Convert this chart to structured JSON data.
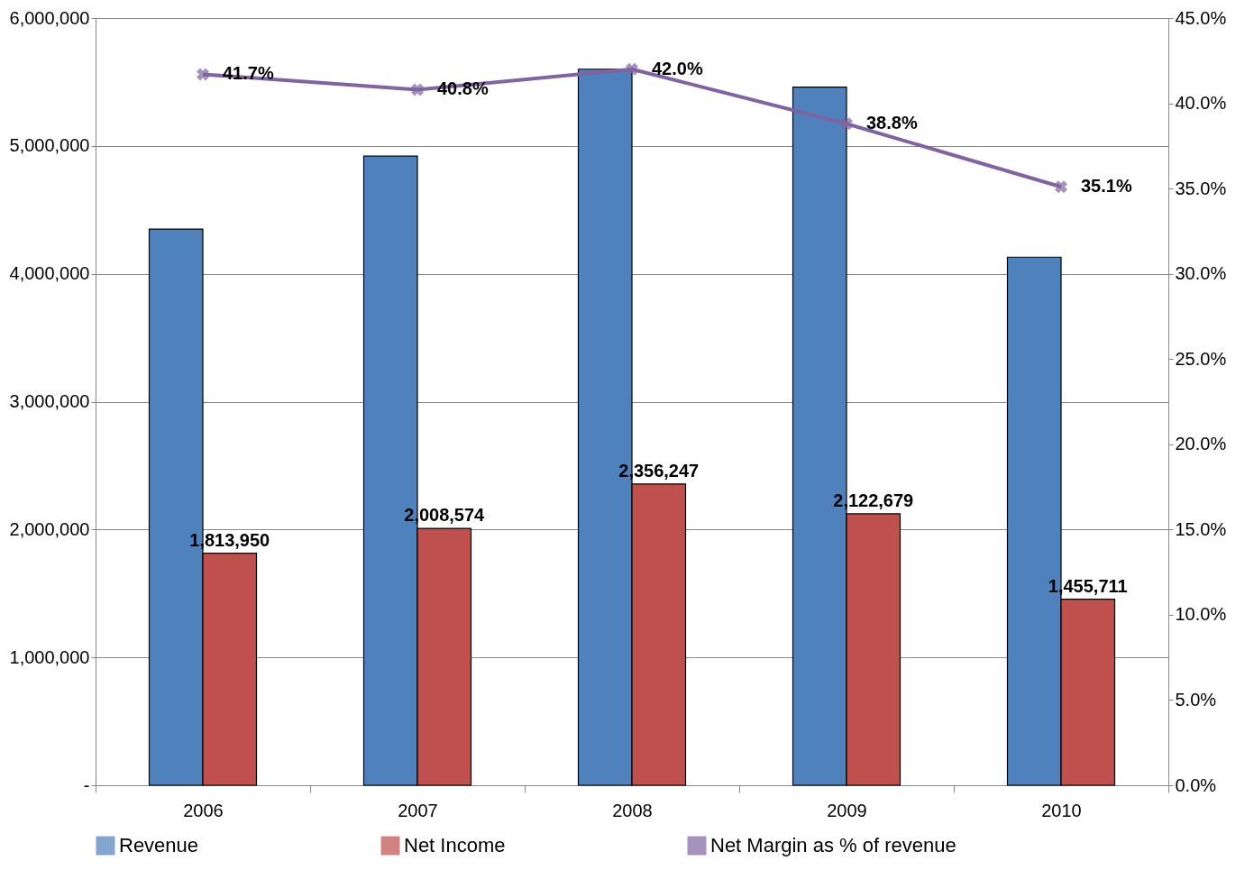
{
  "chart_data": {
    "type": "bar",
    "categories": [
      "2006",
      "2007",
      "2008",
      "2009",
      "2010"
    ],
    "series": [
      {
        "name": "Revenue",
        "color": "#4f81bd",
        "values": [
          4350000,
          4920000,
          5600000,
          5460000,
          4130000
        ]
      },
      {
        "name": "Net Income",
        "color": "#c0504d",
        "values": [
          1813950,
          2008574,
          2356247,
          2122679,
          1455711
        ],
        "value_labels": [
          "1,813,950",
          "2,008,574",
          "2,356,247",
          "2,122,679",
          "1,455,711"
        ]
      },
      {
        "name": "Net Margin as % of revenue",
        "type": "line",
        "axis": "y2",
        "color": "#8064a2",
        "marker": "cross",
        "values": [
          41.7,
          40.8,
          42.0,
          38.8,
          35.1
        ],
        "value_labels": [
          "41.7%",
          "40.8%",
          "42.0%",
          "38.8%",
          "35.1%"
        ]
      }
    ],
    "ylim": [
      0,
      6000000
    ],
    "yticks": [
      {
        "value": 0,
        "label": "-"
      },
      {
        "value": 1000000,
        "label": "1,000,000"
      },
      {
        "value": 2000000,
        "label": "2,000,000"
      },
      {
        "value": 3000000,
        "label": "3,000,000"
      },
      {
        "value": 4000000,
        "label": "4,000,000"
      },
      {
        "value": 5000000,
        "label": "5,000,000"
      },
      {
        "value": 6000000,
        "label": "6,000,000"
      }
    ],
    "y2lim": [
      0,
      45
    ],
    "y2ticks": [
      {
        "value": 0,
        "label": "0.0%"
      },
      {
        "value": 5,
        "label": "5.0%"
      },
      {
        "value": 10,
        "label": "10.0%"
      },
      {
        "value": 15,
        "label": "15.0%"
      },
      {
        "value": 20,
        "label": "20.0%"
      },
      {
        "value": 25,
        "label": "25.0%"
      },
      {
        "value": 30,
        "label": "30.0%"
      },
      {
        "value": 35,
        "label": "35.0%"
      },
      {
        "value": 40,
        "label": "40.0%"
      },
      {
        "value": 45,
        "label": "45.0%"
      }
    ],
    "grid": "y",
    "legend": "bottom"
  }
}
